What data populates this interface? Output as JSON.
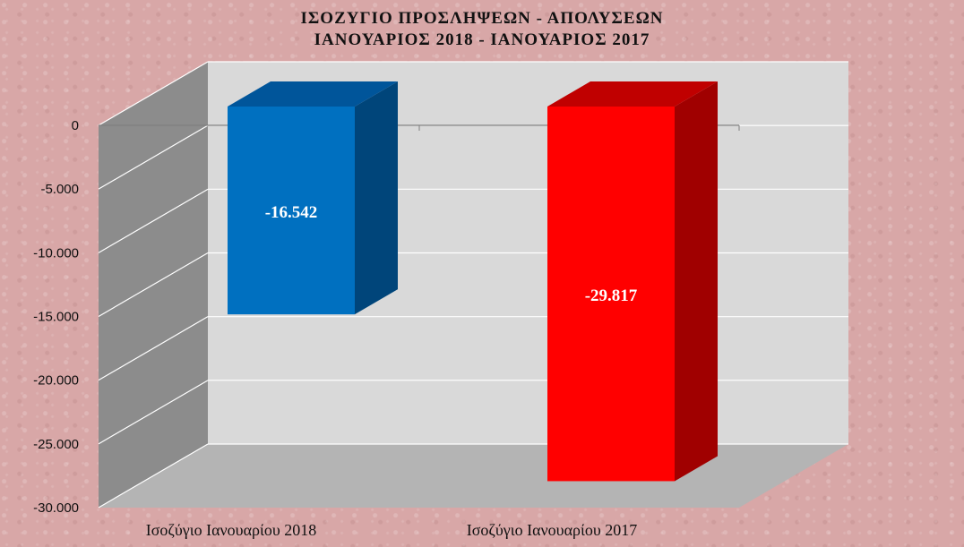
{
  "chart_data": {
    "type": "bar",
    "title": "ΙΣΟΖΥΓΙΟ ΠΡΟΣΛΗΨΕΩΝ - ΑΠΟΛΥΣΕΩΝ",
    "subtitle": "ΙΑΝΟΥΑΡΙΟΣ 2018 - ΙΑΝΟΥΑΡΙΟΣ 2017",
    "categories": [
      "Ισοζύγιο Ιανουαρίου 2018",
      "Ισοζύγιο Ιανουαρίου 2017"
    ],
    "values": [
      -16542,
      -29817
    ],
    "value_labels": [
      "-16.542",
      "-29.817"
    ],
    "ylim": [
      -30000,
      0
    ],
    "yticks": [
      0,
      -5000,
      -10000,
      -15000,
      -20000,
      -25000,
      -30000
    ],
    "ytick_labels": [
      "0",
      "-5.000",
      "-10.000",
      "-15.000",
      "-20.000",
      "-25.000",
      "-30.000"
    ],
    "grid": true,
    "three_d": true,
    "colors": [
      "#0070c0",
      "#ff0000"
    ],
    "side_colors": [
      "#00457a",
      "#a00000"
    ],
    "top_colors": [
      "#00559a",
      "#c00000"
    ]
  }
}
